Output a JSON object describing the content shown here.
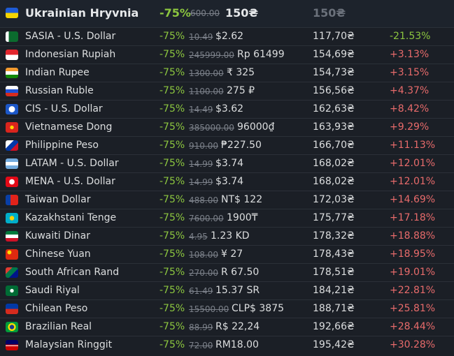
{
  "header": {
    "name": "Ukrainian Hryvnia",
    "discount": "-75%",
    "original": "600.00",
    "price": "150₴",
    "converted": "150₴"
  },
  "table": {
    "rows": [
      [
        "SASIA - U.S. Dollar",
        "-75%",
        "10.49",
        "$2.62",
        "117,70₴",
        "-21.53%"
      ],
      [
        "Indonesian Rupiah",
        "-75%",
        "245999.00",
        "Rp 61499",
        "154,69₴",
        "+3.13%"
      ],
      [
        "Indian Rupee",
        "-75%",
        "1300.00",
        "₹ 325",
        "154,73₴",
        "+3.15%"
      ],
      [
        "Russian Ruble",
        "-75%",
        "1100.00",
        "275 ₽",
        "156,56₴",
        "+4.37%"
      ],
      [
        "CIS - U.S. Dollar",
        "-75%",
        "14.49",
        "$3.62",
        "162,63₴",
        "+8.42%"
      ],
      [
        "Vietnamese Dong",
        "-75%",
        "385000.00",
        "96000₫",
        "163,93₴",
        "+9.29%"
      ],
      [
        "Philippine Peso",
        "-75%",
        "910.00",
        "₱227.50",
        "166,70₴",
        "+11.13%"
      ],
      [
        "LATAM - U.S. Dollar",
        "-75%",
        "14.99",
        "$3.74",
        "168,02₴",
        "+12.01%"
      ],
      [
        "MENA - U.S. Dollar",
        "-75%",
        "14.99",
        "$3.74",
        "168,02₴",
        "+12.01%"
      ],
      [
        "Taiwan Dollar",
        "-75%",
        "488.00",
        "NT$ 122",
        "172,03₴",
        "+14.69%"
      ],
      [
        "Kazakhstani Tenge",
        "-75%",
        "7600.00",
        "1900₸",
        "175,77₴",
        "+17.18%"
      ],
      [
        "Kuwaiti Dinar",
        "-75%",
        "4.95",
        "1.23 KD",
        "178,32₴",
        "+18.88%"
      ],
      [
        "Chinese Yuan",
        "-75%",
        "108.00",
        "¥ 27",
        "178,43₴",
        "+18.95%"
      ],
      [
        "South African Rand",
        "-75%",
        "270.00",
        "R 67.50",
        "178,51₴",
        "+19.01%"
      ],
      [
        "Saudi Riyal",
        "-75%",
        "61.49",
        "15.37 SR",
        "184,21₴",
        "+22.81%"
      ],
      [
        "Chilean Peso",
        "-75%",
        "15500.00",
        "CLP$ 3875",
        "188,71₴",
        "+25.81%"
      ],
      [
        "Brazilian Real",
        "-75%",
        "88.99",
        "R$ 22,24",
        "192,66₴",
        "+28.44%"
      ],
      [
        "Malaysian Ringgit",
        "-75%",
        "72.00",
        "RM18.00",
        "195,42₴",
        "+30.28%"
      ]
    ]
  }
}
